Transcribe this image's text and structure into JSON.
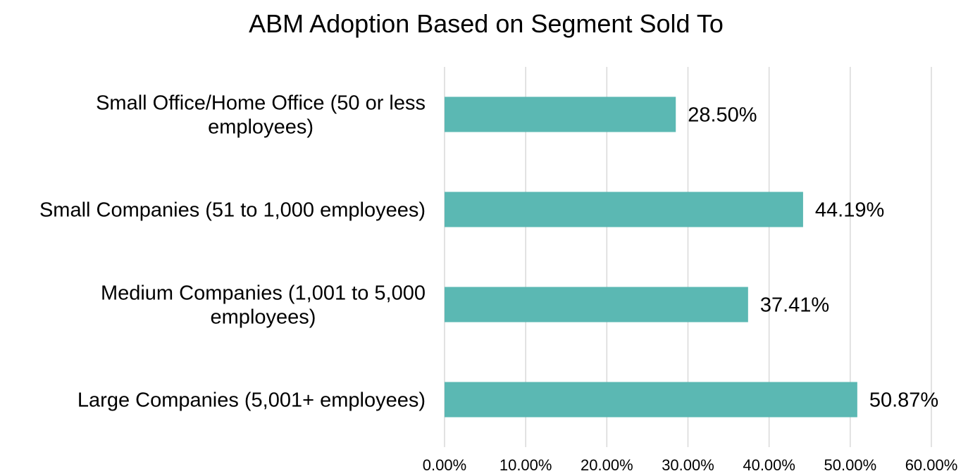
{
  "chart_data": {
    "type": "bar",
    "orientation": "horizontal",
    "title": "ABM Adoption Based on Segment Sold To",
    "categories": [
      [
        "Small Office/Home Office (50 or less",
        "employees)"
      ],
      [
        "Small Companies (51 to 1,000 employees)"
      ],
      [
        "Medium Companies (1,001 to 5,000",
        "employees)"
      ],
      [
        "Large Companies (5,001+ employees)"
      ]
    ],
    "values": [
      28.5,
      44.19,
      37.41,
      50.87
    ],
    "data_labels": [
      "28.50%",
      "44.19%",
      "37.41%",
      "50.87%"
    ],
    "xlim": [
      0,
      60
    ],
    "xticks": [
      0,
      10,
      20,
      30,
      40,
      50,
      60
    ],
    "xtick_labels": [
      "0.00%",
      "10.00%",
      "20.00%",
      "30.00%",
      "40.00%",
      "50.00%",
      "60.00%"
    ],
    "grid": true,
    "legend": "none",
    "xlabel": "",
    "ylabel": "",
    "bar_color": "#5bb8b3"
  }
}
